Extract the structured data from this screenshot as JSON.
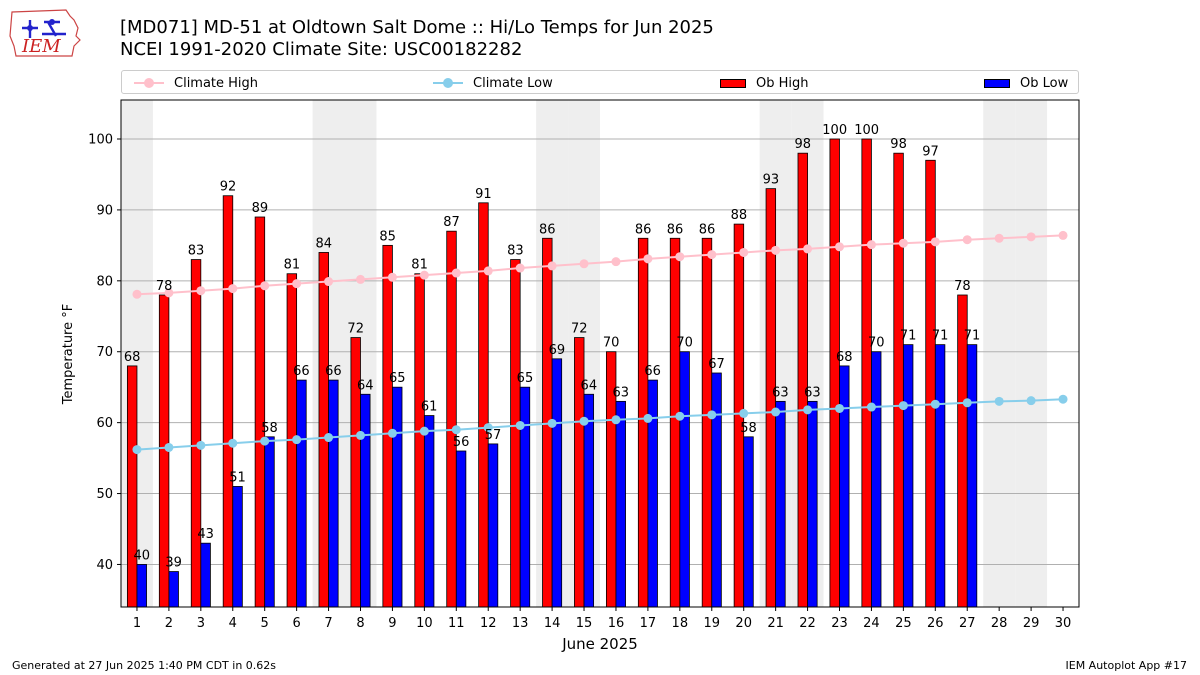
{
  "header": {
    "logo_text": "IEM",
    "title_line1": "[MD071] MD-51 at Oldtown Salt Dome  :: Hi/Lo Temps for Jun 2025",
    "title_line2": "NCEI 1991-2020 Climate Site: USC00182282"
  },
  "legend": {
    "climate_high": "Climate High",
    "climate_low": "Climate Low",
    "ob_high": "Ob High",
    "ob_low": "Ob Low"
  },
  "colors": {
    "ob_high": "#ff0000",
    "ob_low": "#0000ff",
    "climate_high": "#ffc0cb",
    "climate_low": "#87ceeb",
    "weekend_shade": "#eeeeee",
    "grid": "#b0b0b0"
  },
  "footer": {
    "generated": "Generated at 27 Jun 2025 1:40 PM CDT in 0.62s",
    "app": "IEM Autoplot App #17"
  },
  "chart_data": {
    "type": "bar",
    "xlabel": "June 2025",
    "ylabel": "Temperature °F",
    "ylim": [
      34,
      105.5
    ],
    "xlim": [
      0.5,
      30.5
    ],
    "yticks": [
      40,
      50,
      60,
      70,
      80,
      90,
      100
    ],
    "grid": true,
    "legend_position": "top",
    "days": [
      1,
      2,
      3,
      4,
      5,
      6,
      7,
      8,
      9,
      10,
      11,
      12,
      13,
      14,
      15,
      16,
      17,
      18,
      19,
      20,
      21,
      22,
      23,
      24,
      25,
      26,
      27,
      28,
      29,
      30
    ],
    "weekend_shaded_days": [
      1,
      7,
      8,
      14,
      15,
      21,
      22,
      28,
      29
    ],
    "series": [
      {
        "name": "Ob High",
        "kind": "bar",
        "values": [
          68,
          78,
          83,
          92,
          89,
          81,
          84,
          72,
          85,
          81,
          87,
          91,
          83,
          86,
          72,
          70,
          86,
          86,
          86,
          88,
          93,
          98,
          100,
          100,
          98,
          97,
          78
        ]
      },
      {
        "name": "Ob Low",
        "kind": "bar",
        "values": [
          40,
          39,
          43,
          51,
          58,
          66,
          66,
          64,
          65,
          61,
          56,
          57,
          65,
          69,
          64,
          63,
          66,
          70,
          67,
          58,
          63,
          63,
          68,
          70,
          71,
          71,
          71
        ]
      },
      {
        "name": "Climate High",
        "kind": "line",
        "values": [
          78.1,
          78.3,
          78.6,
          78.9,
          79.3,
          79.6,
          79.9,
          80.2,
          80.5,
          80.8,
          81.1,
          81.4,
          81.8,
          82.1,
          82.4,
          82.7,
          83.1,
          83.4,
          83.7,
          84.0,
          84.3,
          84.5,
          84.8,
          85.1,
          85.3,
          85.5,
          85.8,
          86.0,
          86.2,
          86.4
        ]
      },
      {
        "name": "Climate Low",
        "kind": "line",
        "values": [
          56.2,
          56.5,
          56.8,
          57.1,
          57.4,
          57.6,
          57.9,
          58.2,
          58.5,
          58.8,
          59.0,
          59.3,
          59.6,
          59.9,
          60.2,
          60.4,
          60.6,
          60.9,
          61.1,
          61.3,
          61.5,
          61.8,
          62.0,
          62.2,
          62.4,
          62.6,
          62.8,
          63.0,
          63.1,
          63.3
        ]
      }
    ]
  }
}
